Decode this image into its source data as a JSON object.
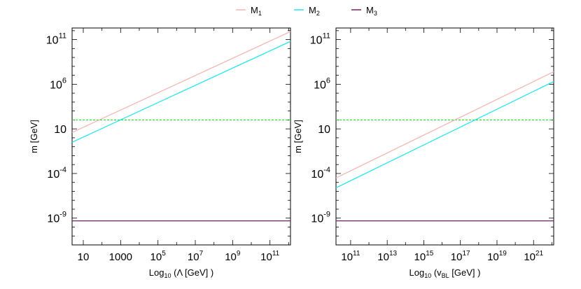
{
  "legend": {
    "placement": "top-center",
    "items": [
      {
        "label": "M",
        "sub": "1",
        "color": "#f4b9b5"
      },
      {
        "label": "M",
        "sub": "2",
        "color": "#22e6f0"
      },
      {
        "label": "M",
        "sub": "3",
        "color": "#7a1f66"
      }
    ]
  },
  "reference_line": {
    "value": 100,
    "color": "#22dd22",
    "style": "dashed"
  },
  "chart_data": [
    {
      "type": "line",
      "xlabel": {
        "pre": "Log",
        "sub": "10",
        "post": " (Λ [GeV] )"
      },
      "ylabel": "m [GeV]",
      "x_scale": "log",
      "y_scale": "log",
      "xlim_log10": [
        0.4,
        12.1
      ],
      "ylim_log10": [
        -12,
        12.3
      ],
      "grid": false,
      "x_ticks": [
        {
          "v": 1,
          "label": "10"
        },
        {
          "v": 3,
          "label": "1000"
        },
        {
          "v": 5,
          "base": "10",
          "exp": "5"
        },
        {
          "v": 7,
          "base": "10",
          "exp": "7"
        },
        {
          "v": 9,
          "base": "10",
          "exp": "9"
        },
        {
          "v": 11,
          "base": "10",
          "exp": "11"
        }
      ],
      "y_ticks": [
        {
          "v": 11,
          "base": "10",
          "exp": "11"
        },
        {
          "v": 6,
          "base": "10",
          "exp": "6"
        },
        {
          "v": 1,
          "label": "10"
        },
        {
          "v": -4,
          "base": "10",
          "exp": "-4"
        },
        {
          "v": -9,
          "base": "10",
          "exp": "-9"
        }
      ],
      "series": [
        {
          "name": "M1",
          "x_log10": [
            0.4,
            12.1
          ],
          "y_log10": [
            0.6,
            11.9
          ]
        },
        {
          "name": "M2",
          "x_log10": [
            0.4,
            12.1
          ],
          "y_log10": [
            -0.5,
            10.8
          ]
        },
        {
          "name": "M3",
          "x_log10": [
            0.4,
            12.1
          ],
          "y_log10": [
            -9.3,
            -9.3
          ]
        }
      ]
    },
    {
      "type": "line",
      "xlabel": {
        "pre": "Log",
        "sub": "10",
        "post": " (v",
        "sub2": "BL",
        "post2": " [GeV] )"
      },
      "ylabel": "m [GeV]",
      "x_scale": "log",
      "y_scale": "log",
      "xlim_log10": [
        10.2,
        22.1
      ],
      "ylim_log10": [
        -12,
        12.3
      ],
      "grid": false,
      "x_ticks": [
        {
          "v": 11,
          "base": "10",
          "exp": "11"
        },
        {
          "v": 13,
          "base": "10",
          "exp": "13"
        },
        {
          "v": 15,
          "base": "10",
          "exp": "15"
        },
        {
          "v": 17,
          "base": "10",
          "exp": "17"
        },
        {
          "v": 19,
          "base": "10",
          "exp": "19"
        },
        {
          "v": 21,
          "base": "10",
          "exp": "21"
        }
      ],
      "y_ticks": [
        {
          "v": 11,
          "base": "10",
          "exp": "11"
        },
        {
          "v": 6,
          "base": "10",
          "exp": "6"
        },
        {
          "v": 1,
          "label": "10"
        },
        {
          "v": -4,
          "base": "10",
          "exp": "-4"
        },
        {
          "v": -9,
          "base": "10",
          "exp": "-9"
        }
      ],
      "series": [
        {
          "name": "M1",
          "x_log10": [
            10.2,
            22.1
          ],
          "y_log10": [
            -4.5,
            7.4
          ]
        },
        {
          "name": "M2",
          "x_log10": [
            10.2,
            22.1
          ],
          "y_log10": [
            -5.6,
            6.3
          ]
        },
        {
          "name": "M3",
          "x_log10": [
            10.2,
            22.1
          ],
          "y_log10": [
            -9.3,
            -9.3
          ]
        }
      ]
    }
  ]
}
